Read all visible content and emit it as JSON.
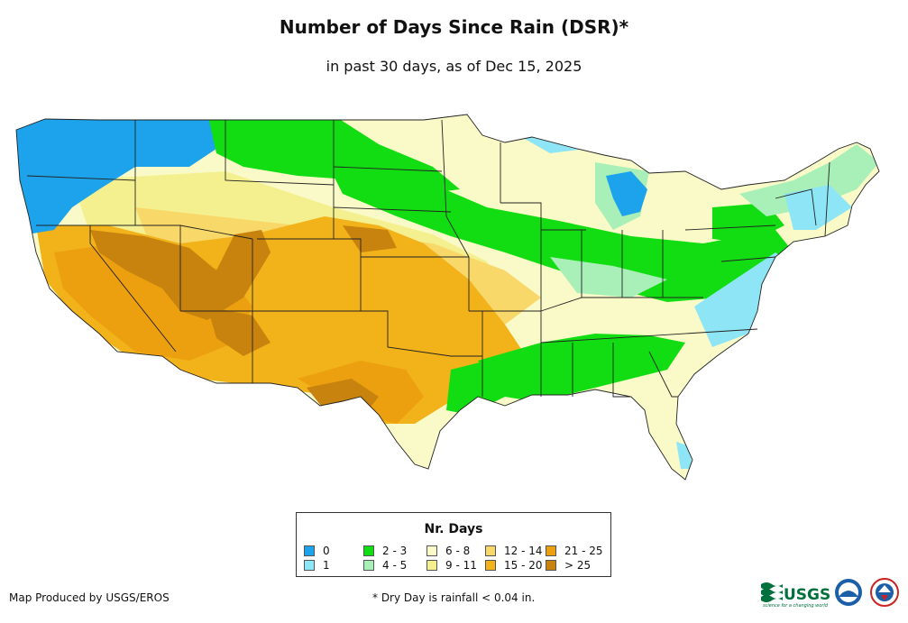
{
  "title": "Number of Days Since Rain (DSR)*",
  "subtitle": "in past 30 days, as of Dec 15, 2025",
  "legend": {
    "title": "Nr. Days",
    "items": [
      {
        "label": "0",
        "color": "#1ca3ec"
      },
      {
        "label": "1",
        "color": "#8ee5f5"
      },
      {
        "label": "2 - 3",
        "color": "#12dd12"
      },
      {
        "label": "4 - 5",
        "color": "#a8f0b8"
      },
      {
        "label": "6 - 8",
        "color": "#fafac8"
      },
      {
        "label": "9 - 11",
        "color": "#f4f090"
      },
      {
        "label": "12 - 14",
        "color": "#f8d868"
      },
      {
        "label": "15 - 20",
        "color": "#f2b21a"
      },
      {
        "label": "21 - 25",
        "color": "#eca010"
      },
      {
        "label": "> 25",
        "color": "#c8820e"
      }
    ]
  },
  "credit": "Map Produced by USGS/EROS",
  "footnote": "* Dry Day is rainfall < 0.04 in.",
  "logos": {
    "usgs": "USGS",
    "usgs_tagline": "science for a changing world"
  }
}
